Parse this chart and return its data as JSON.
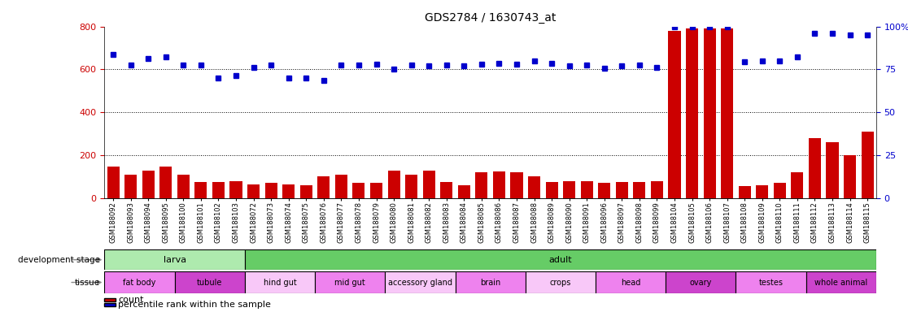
{
  "title": "GDS2784 / 1630743_at",
  "samples": [
    "GSM188092",
    "GSM188093",
    "GSM188094",
    "GSM188095",
    "GSM188100",
    "GSM188101",
    "GSM188102",
    "GSM188103",
    "GSM188072",
    "GSM188073",
    "GSM188074",
    "GSM188075",
    "GSM188076",
    "GSM188077",
    "GSM188078",
    "GSM188079",
    "GSM188080",
    "GSM188081",
    "GSM188082",
    "GSM188083",
    "GSM188084",
    "GSM188085",
    "GSM188086",
    "GSM188087",
    "GSM188088",
    "GSM188089",
    "GSM188090",
    "GSM188091",
    "GSM188096",
    "GSM188097",
    "GSM188098",
    "GSM188099",
    "GSM188104",
    "GSM188105",
    "GSM188106",
    "GSM188107",
    "GSM188108",
    "GSM188109",
    "GSM188110",
    "GSM188111",
    "GSM188112",
    "GSM188113",
    "GSM188114",
    "GSM188115"
  ],
  "counts": [
    148,
    110,
    130,
    148,
    108,
    75,
    75,
    80,
    62,
    70,
    65,
    60,
    100,
    110,
    70,
    70,
    130,
    110,
    130,
    75,
    60,
    120,
    125,
    120,
    100,
    75,
    80,
    80,
    70,
    75,
    75,
    80,
    780,
    790,
    790,
    790,
    55,
    60,
    70,
    120,
    280,
    260,
    200,
    310
  ],
  "percentile": [
    670,
    620,
    650,
    660,
    620,
    620,
    560,
    570,
    610,
    620,
    560,
    560,
    550,
    620,
    620,
    625,
    600,
    620,
    615,
    620,
    615,
    625,
    630,
    625,
    640,
    630,
    615,
    620,
    605,
    615,
    620,
    610,
    800,
    800,
    800,
    800,
    635,
    640,
    640,
    660,
    770,
    770,
    760,
    760
  ],
  "ylim_left": [
    0,
    800
  ],
  "ylim_right": [
    0,
    800
  ],
  "right_ticks": [
    0,
    200,
    400,
    600,
    800
  ],
  "right_tick_labels": [
    "0",
    "25",
    "50",
    "75",
    "100%"
  ],
  "left_ticks": [
    0,
    200,
    400,
    600,
    800
  ],
  "left_tick_labels": [
    "0",
    "200",
    "400",
    "600",
    "800"
  ],
  "grid_lines": [
    200,
    400,
    600
  ],
  "dev_stages": [
    {
      "label": "larva",
      "start": 0,
      "end": 8,
      "color": "#aeeaae"
    },
    {
      "label": "adult",
      "start": 8,
      "end": 44,
      "color": "#66cc66"
    }
  ],
  "tissues": [
    {
      "label": "fat body",
      "start": 0,
      "end": 4,
      "color": "#ee82ee"
    },
    {
      "label": "tubule",
      "start": 4,
      "end": 8,
      "color": "#cc44cc"
    },
    {
      "label": "hind gut",
      "start": 8,
      "end": 12,
      "color": "#f8c8f8"
    },
    {
      "label": "mid gut",
      "start": 12,
      "end": 16,
      "color": "#ee82ee"
    },
    {
      "label": "accessory gland",
      "start": 16,
      "end": 20,
      "color": "#f8c8f8"
    },
    {
      "label": "brain",
      "start": 20,
      "end": 24,
      "color": "#ee82ee"
    },
    {
      "label": "crops",
      "start": 24,
      "end": 28,
      "color": "#f8c8f8"
    },
    {
      "label": "head",
      "start": 28,
      "end": 32,
      "color": "#ee82ee"
    },
    {
      "label": "ovary",
      "start": 32,
      "end": 36,
      "color": "#cc44cc"
    },
    {
      "label": "testes",
      "start": 36,
      "end": 40,
      "color": "#ee82ee"
    },
    {
      "label": "whole animal",
      "start": 40,
      "end": 44,
      "color": "#cc44cc"
    }
  ],
  "bar_color": "#cc0000",
  "dot_color": "#0000cc",
  "label_color_left": "#cc0000",
  "label_color_right": "#0000cc"
}
